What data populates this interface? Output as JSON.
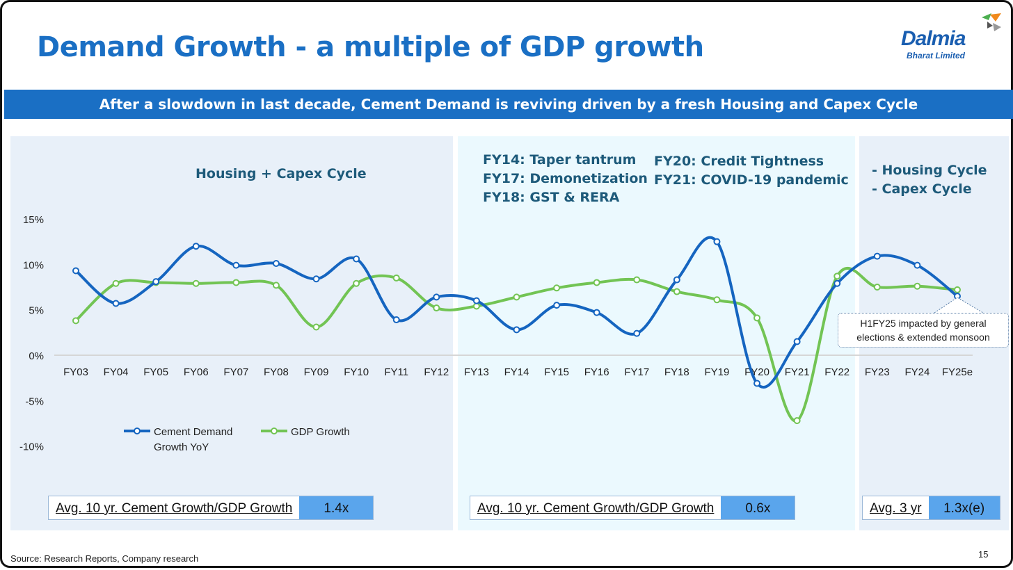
{
  "title": "Demand Growth - a multiple of GDP growth",
  "logo": {
    "name": "Dalmia",
    "sub": "Bharat Limited"
  },
  "banner": "After a slowdown in last decade, Cement Demand is reviving driven by a fresh Housing and Capex Cycle",
  "notes": {
    "left": "Housing + Capex Cycle",
    "mid1": [
      "FY14: Taper tantrum",
      "FY17: Demonetization",
      "FY18: GST & RERA"
    ],
    "mid2": [
      "FY20: Credit Tightness",
      "FY21: COVID-19 pandemic"
    ],
    "right": [
      "- Housing Cycle",
      "- Capex Cycle"
    ]
  },
  "callout": [
    "H1FY25 impacted by general",
    "elections & extended monsoon"
  ],
  "boxes": [
    {
      "label": "Avg. 10 yr. Cement Growth/GDP Growth",
      "value": "1.4x"
    },
    {
      "label": "Avg. 10 yr. Cement Growth/GDP Growth",
      "value": "0.6x"
    },
    {
      "label": "Avg. 3 yr",
      "value": "1.3x(e)"
    }
  ],
  "source": "Source: Research Reports, Company research",
  "page_number": "15",
  "colors": {
    "cement": "#1565c0",
    "gdp": "#72c454",
    "accent": "#1a6fc4"
  },
  "chart_data": {
    "type": "line",
    "x": [
      "FY03",
      "FY04",
      "FY05",
      "FY06",
      "FY07",
      "FY08",
      "FY09",
      "FY10",
      "FY11",
      "FY12",
      "FY13",
      "FY14",
      "FY15",
      "FY16",
      "FY17",
      "FY18",
      "FY19",
      "FY20",
      "FY21",
      "FY22",
      "FY23",
      "FY24",
      "FY25e"
    ],
    "series": [
      {
        "name": "Cement Demand Growth YoY",
        "values": [
          9.3,
          5.7,
          8.1,
          12.0,
          9.9,
          10.1,
          8.4,
          10.6,
          3.9,
          6.4,
          6.0,
          2.8,
          5.5,
          4.7,
          2.4,
          8.3,
          12.5,
          -3.1,
          1.5,
          7.9,
          10.9,
          9.9,
          6.5
        ]
      },
      {
        "name": "GDP Growth",
        "values": [
          3.8,
          7.9,
          8.0,
          7.9,
          8.0,
          7.7,
          3.1,
          7.9,
          8.5,
          5.2,
          5.4,
          6.4,
          7.4,
          8.0,
          8.3,
          7.0,
          6.1,
          4.1,
          -7.2,
          8.7,
          7.5,
          7.6,
          7.2
        ]
      }
    ],
    "legend_labels": [
      "Cement Demand",
      "Growth YoY",
      "GDP Growth"
    ],
    "yticks": [
      "15%",
      "10%",
      "5%",
      "0%",
      "-5%",
      "-10%"
    ],
    "ytick_values": [
      15,
      10,
      5,
      0,
      -5,
      -10
    ],
    "ylim": [
      -10,
      15
    ],
    "grid": false,
    "legend": "bottom-left"
  }
}
